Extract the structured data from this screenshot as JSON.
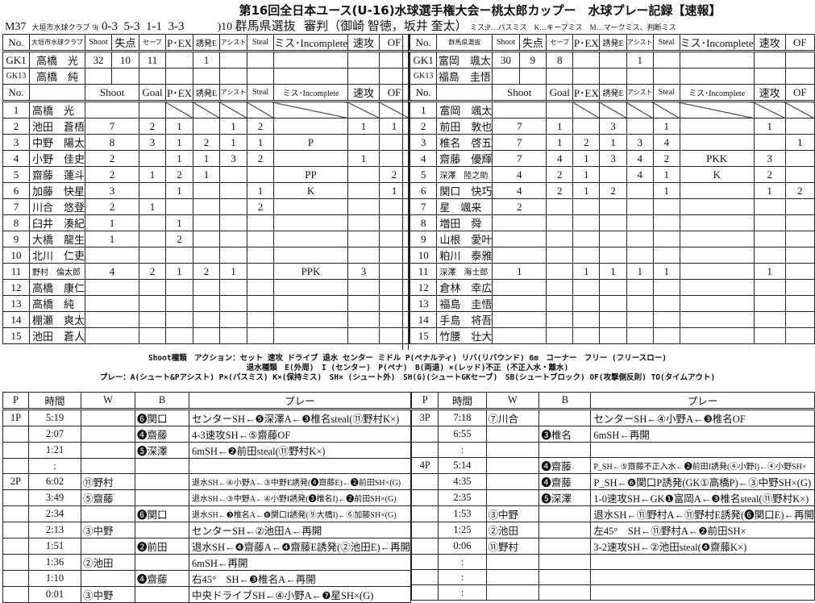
{
  "header": {
    "title": "第16回全日本ユース(U-16)水球選手権大会ー桃太郎カップー　水球プレー記録【速報】",
    "match_no": "M37",
    "team_a": "大垣市水球クラブ",
    "score_a": "9(",
    "periods": "0-3  5-3  1-1  3-3",
    "score_b": ")10",
    "team_b": "群馬県選抜",
    "referees": "審判（御崎 智徳，坂井 奎太）",
    "miss_legend": "ミス:P…パスミス　K…キープミス　M…マークミス、判断ミス"
  },
  "stats_header": [
    "No.",
    "",
    "Shoot",
    "失点",
    "セーブ",
    "P･EX",
    "誘発E",
    "アシスト",
    "Steal",
    "ミス･Incomplete",
    "速攻",
    "OF"
  ],
  "player_header": [
    "No.",
    "",
    "Shoot",
    "Goal",
    "P･EX",
    "誘発E",
    "アシスト",
    "Steal",
    "ミス･Incomplete",
    "速攻",
    "OF"
  ],
  "left_team": {
    "name": "大垣市水球クラブ",
    "goalkeepers": [
      [
        "GK1",
        "高橋　光",
        "32",
        "10",
        "11",
        "",
        "1",
        "",
        "",
        "",
        "",
        ""
      ],
      [
        "GK13",
        "高橋　純",
        "",
        "",
        "",
        "",
        "",
        "",
        "",
        "",
        "",
        ""
      ]
    ],
    "players": [
      [
        "1",
        "高橋　光",
        "",
        "",
        "",
        "",
        "",
        "",
        "",
        "",
        ""
      ],
      [
        "2",
        "池田　蒼梧",
        "7",
        "2",
        "1",
        "",
        "1",
        "2",
        "",
        "1",
        "1"
      ],
      [
        "3",
        "中野　陽太",
        "8",
        "3",
        "1",
        "2",
        "1",
        "1",
        "P",
        "",
        ""
      ],
      [
        "4",
        "小野　佳史",
        "2",
        "",
        "1",
        "1",
        "3",
        "2",
        "",
        "1",
        ""
      ],
      [
        "5",
        "齋藤　蓮斗",
        "2",
        "1",
        "2",
        "1",
        "",
        "",
        "PP",
        "",
        "2"
      ],
      [
        "6",
        "加藤　快星",
        "3",
        "",
        "1",
        "",
        "",
        "1",
        "K",
        "",
        "1"
      ],
      [
        "7",
        "川合　悠登",
        "2",
        "1",
        "",
        "",
        "",
        "2",
        "",
        "",
        ""
      ],
      [
        "8",
        "臼井　湊紀",
        "1",
        "",
        "1",
        "",
        "",
        "",
        "",
        "",
        ""
      ],
      [
        "9",
        "大橋　龍生",
        "1",
        "",
        "2",
        "",
        "",
        "",
        "",
        "",
        ""
      ],
      [
        "10",
        "北川　仁吏",
        "",
        "",
        "",
        "",
        "",
        "",
        "",
        "",
        ""
      ],
      [
        "11",
        "野村　倫太郎",
        "4",
        "2",
        "1",
        "2",
        "1",
        "",
        "PPK",
        "3",
        ""
      ],
      [
        "12",
        "高橋　康仁",
        "",
        "",
        "",
        "",
        "",
        "",
        "",
        "",
        ""
      ],
      [
        "13",
        "高橋　純",
        "",
        "",
        "",
        "",
        "",
        "",
        "",
        "",
        ""
      ],
      [
        "14",
        "棚瀬　爽太",
        "",
        "",
        "",
        "",
        "",
        "",
        "",
        "",
        ""
      ],
      [
        "15",
        "池田　蒼人",
        "",
        "",
        "",
        "",
        "",
        "",
        "",
        "",
        ""
      ]
    ]
  },
  "right_team": {
    "name": "群馬県選抜",
    "goalkeepers": [
      [
        "GK1",
        "富岡　颯太",
        "30",
        "9",
        "8",
        "",
        "",
        "1",
        "",
        "",
        "",
        ""
      ],
      [
        "GK13",
        "福島　圭悟",
        "",
        "",
        "",
        "",
        "",
        "",
        "",
        "",
        "",
        ""
      ]
    ],
    "players": [
      [
        "1",
        "富岡　颯太",
        "",
        "",
        "",
        "",
        "",
        "",
        "",
        "",
        ""
      ],
      [
        "2",
        "前田　敦也",
        "7",
        "1",
        "",
        "3",
        "",
        "1",
        "",
        "1",
        ""
      ],
      [
        "3",
        "椎名　啓五",
        "7",
        "1",
        "2",
        "1",
        "3",
        "4",
        "",
        "",
        "1"
      ],
      [
        "4",
        "齋藤　優輝",
        "7",
        "4",
        "1",
        "3",
        "4",
        "2",
        "PKK",
        "3",
        ""
      ],
      [
        "5",
        "深澤　陸之助",
        "4",
        "2",
        "1",
        "",
        "4",
        "1",
        "K",
        "2",
        ""
      ],
      [
        "6",
        "関口　快巧",
        "4",
        "2",
        "1",
        "2",
        "",
        "1",
        "",
        "1",
        "2"
      ],
      [
        "7",
        "星　颯来",
        "2",
        "",
        "",
        "",
        "",
        "",
        "",
        "",
        ""
      ],
      [
        "8",
        "増田　舜",
        "",
        "",
        "",
        "",
        "",
        "",
        "",
        "",
        ""
      ],
      [
        "9",
        "山根　愛叶",
        "",
        "",
        "",
        "",
        "",
        "",
        "",
        "",
        ""
      ],
      [
        "10",
        "粕川　泰雅",
        "",
        "",
        "",
        "",
        "",
        "",
        "",
        "",
        ""
      ],
      [
        "11",
        "深澤　海士郎",
        "1",
        "",
        "1",
        "1",
        "1",
        "1",
        "",
        "1",
        ""
      ],
      [
        "12",
        "倉林　幸広",
        "",
        "",
        "",
        "",
        "",
        "",
        "",
        "",
        ""
      ],
      [
        "13",
        "福島　圭悟",
        "",
        "",
        "",
        "",
        "",
        "",
        "",
        "",
        ""
      ],
      [
        "14",
        "手島　将吾",
        "",
        "",
        "",
        "",
        "",
        "",
        "",
        "",
        ""
      ],
      [
        "15",
        "竹腰　壮大",
        "",
        "",
        "",
        "",
        "",
        "",
        "",
        "",
        ""
      ]
    ]
  },
  "legend": {
    "line1": "Shoot種類　アクション：セット 速攻 ドライブ 退水 センター ミドル P(ペナルティ) リバ(リバウンド) 6m　コーナー　フリー (フリースロー)",
    "line2": "退水種類　E(外周)　I (センター)　P(ペナ)　B(両退) ×(レッド)不正 (不正入水・離水)",
    "line3": "プレー：A(シュート&Pアシスト) P×(パスミス) K×(保持ミス)　SH× (シュート外)　SH(G)(シュートGKセーブ)　SB(シュートブロック) OF(攻撃側反則) TO(タイムアウト)"
  },
  "play_header": [
    "P",
    "時間",
    "W",
    "B",
    "プレー"
  ],
  "plays_left": [
    [
      "1P",
      "5:19",
      "",
      "❻関口",
      "センターSH←❺深澤A←❸椎名steal(⑪野村K×)"
    ],
    [
      "",
      "2:07",
      "",
      "❹齋藤",
      "4-3速攻SH←⑤齋藤OF"
    ],
    [
      "",
      "1:21",
      "",
      "❺深澤",
      "6mSH←❷前田steal(⑪野村K×)"
    ],
    [
      "",
      ":",
      "",
      "",
      ""
    ],
    [
      "2P",
      "6:02",
      "⑪野村",
      "",
      "退水SH←④小野A←③中野E誘発(❹齋藤E)←❷前田SH×(G)"
    ],
    [
      "",
      "3:49",
      "⑤齋藤",
      "",
      "退水SH←③中野A←④小野I誘発(❸椎名I)←❷前田SH×(G)"
    ],
    [
      "",
      "2:34",
      "",
      "❻関口",
      "退水SH←❸椎名A←❻関口I誘発(⑨大橋I)←⑥加藤SH×(G)"
    ],
    [
      "",
      "2:13",
      "③中野",
      "",
      "センターSH←②池田A←再開"
    ],
    [
      "",
      "1:51",
      "",
      "❷前田",
      "退水SH←❹齋藤A←❹齋藤E誘発(②池田E)←再開"
    ],
    [
      "",
      "1:36",
      "②池田",
      "",
      "6mSH←再開"
    ],
    [
      "",
      "1:10",
      "",
      "❹齋藤",
      "右45°　SH←❸椎名A←再開"
    ],
    [
      "",
      "0:01",
      "③中野",
      "",
      "中央ドライブSH←④小野A←❼星SH×(G)"
    ]
  ],
  "plays_right": [
    [
      "3P",
      "7:18",
      "⑦川合",
      "",
      "センターSH←④小野A←❸椎名OF"
    ],
    [
      "",
      "6:55",
      "",
      "❸椎名",
      "6mSH←再開"
    ],
    [
      "",
      ":",
      "",
      "",
      ""
    ],
    [
      "4P",
      "5:14",
      "",
      "❹齋藤",
      "P_SH←⑤齋藤不正入水←❷前田I誘発(④小野I)←④小野SH×"
    ],
    [
      "",
      "4:35",
      "",
      "❹齋藤",
      "P_SH←❻関口P誘発(GK①高橋P)←③中野SH×(G)"
    ],
    [
      "",
      "2:35",
      "",
      "❺深澤",
      "1-0速攻SH←GK❶富岡A←❸椎名steal(⑪野村K×)"
    ],
    [
      "",
      "1:53",
      "③中野",
      "",
      "退水SH←⑪野村A←⑪野村E誘発(❻関口E)←再開"
    ],
    [
      "",
      "1:25",
      "②池田",
      "",
      "左45°　SH←⑪野村A←❷前田SH×"
    ],
    [
      "",
      "0:06",
      "⑪野村",
      "",
      "3-2速攻SH←②池田steal(❹齋藤K×)"
    ],
    [
      "",
      ":",
      "",
      "",
      ""
    ],
    [
      "",
      ":",
      "",
      "",
      ""
    ],
    [
      "",
      ":",
      "",
      "",
      ""
    ]
  ]
}
